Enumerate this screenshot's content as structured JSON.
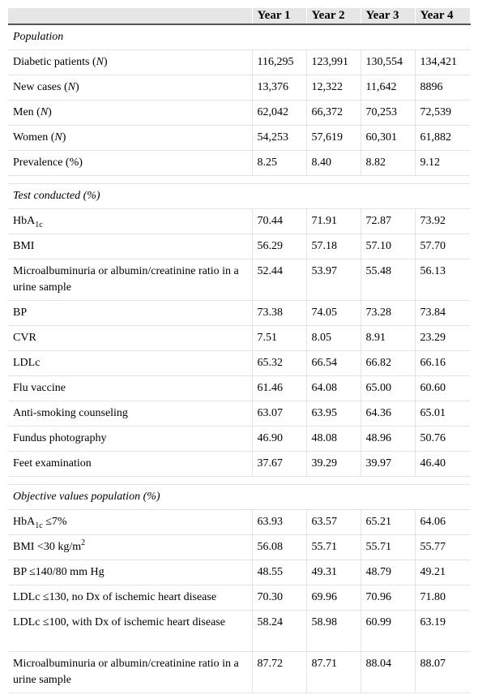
{
  "table": {
    "headers": [
      "",
      "Year 1",
      "Year 2",
      "Year 3",
      "Year 4"
    ],
    "population": {
      "title": "Population",
      "rows": [
        {
          "label_pre": "Diabetic patients (",
          "label_it": "N",
          "label_post": ")",
          "values": [
            "116,295",
            "123,991",
            "130,554",
            "134,421"
          ]
        },
        {
          "label_pre": "New cases (",
          "label_it": "N",
          "label_post": ")",
          "values": [
            "13,376",
            "12,322",
            "11,642",
            "8896"
          ]
        },
        {
          "label_pre": "Men (",
          "label_it": "N",
          "label_post": ")",
          "values": [
            "62,042",
            "66,372",
            "70,253",
            "72,539"
          ]
        },
        {
          "label_pre": "Women (",
          "label_it": "N",
          "label_post": ")",
          "values": [
            "54,253",
            "57,619",
            "60,301",
            "61,882"
          ]
        },
        {
          "label_pre": "Prevalence (%)",
          "label_it": "",
          "label_post": "",
          "values": [
            "8.25",
            "8.40",
            "8.82",
            "9.12"
          ]
        }
      ]
    },
    "tests": {
      "title": "Test conducted (%)",
      "rows": [
        {
          "label_pre": "HbA",
          "label_sub": "1c",
          "label_post": "",
          "values": [
            "70.44",
            "71.91",
            "72.87",
            "73.92"
          ]
        },
        {
          "label_pre": "BMI",
          "values": [
            "56.29",
            "57.18",
            "57.10",
            "57.70"
          ]
        },
        {
          "label_pre": "Microalbuminuria or albumin/creatinine ratio in a urine sample",
          "values": [
            "52.44",
            "53.97",
            "55.48",
            "56.13"
          ]
        },
        {
          "label_pre": "BP",
          "values": [
            "73.38",
            "74.05",
            "73.28",
            "73.84"
          ]
        },
        {
          "label_pre": "CVR",
          "values": [
            "7.51",
            "8.05",
            "8.91",
            "23.29"
          ]
        },
        {
          "label_pre": "LDLc",
          "values": [
            "65.32",
            "66.54",
            "66.82",
            "66.16"
          ]
        },
        {
          "label_pre": "Flu vaccine",
          "values": [
            "61.46",
            "64.08",
            "65.00",
            "60.60"
          ]
        },
        {
          "label_pre": "Anti-smoking counseling",
          "values": [
            "63.07",
            "63.95",
            "64.36",
            "65.01"
          ]
        },
        {
          "label_pre": "Fundus photography",
          "values": [
            "46.90",
            "48.08",
            "48.96",
            "50.76"
          ]
        },
        {
          "label_pre": "Feet examination",
          "values": [
            "37.67",
            "39.29",
            "39.97",
            "46.40"
          ]
        }
      ]
    },
    "objectives": {
      "title": "Objective values population (%)",
      "rows": [
        {
          "label_pre": "HbA",
          "label_sub": "1c",
          "label_post": " ≤7%",
          "values": [
            "63.93",
            "63.57",
            "65.21",
            "64.06"
          ]
        },
        {
          "label_pre": "BMI <30 kg/m",
          "label_sup": "2",
          "label_post": "",
          "values": [
            "56.08",
            "55.71",
            "55.71",
            "55.77"
          ]
        },
        {
          "label_pre": "BP ≤140/80 mm Hg",
          "values": [
            "48.55",
            "49.31",
            "48.79",
            "49.21"
          ]
        },
        {
          "label_pre": "LDLc ≤130, no Dx of ischemic heart disease",
          "values": [
            "70.30",
            "69.96",
            "70.96",
            "71.80"
          ]
        },
        {
          "label_pre": "LDLc ≤100, with Dx of ischemic heart disease",
          "values": [
            "58.24",
            "58.98",
            "60.99",
            "63.19"
          ]
        },
        {
          "label_pre": "Microalbuminuria or albumin/creatinine ratio in a urine sample",
          "values": [
            "87.72",
            "87.71",
            "88.04",
            "88.07"
          ]
        }
      ]
    }
  }
}
